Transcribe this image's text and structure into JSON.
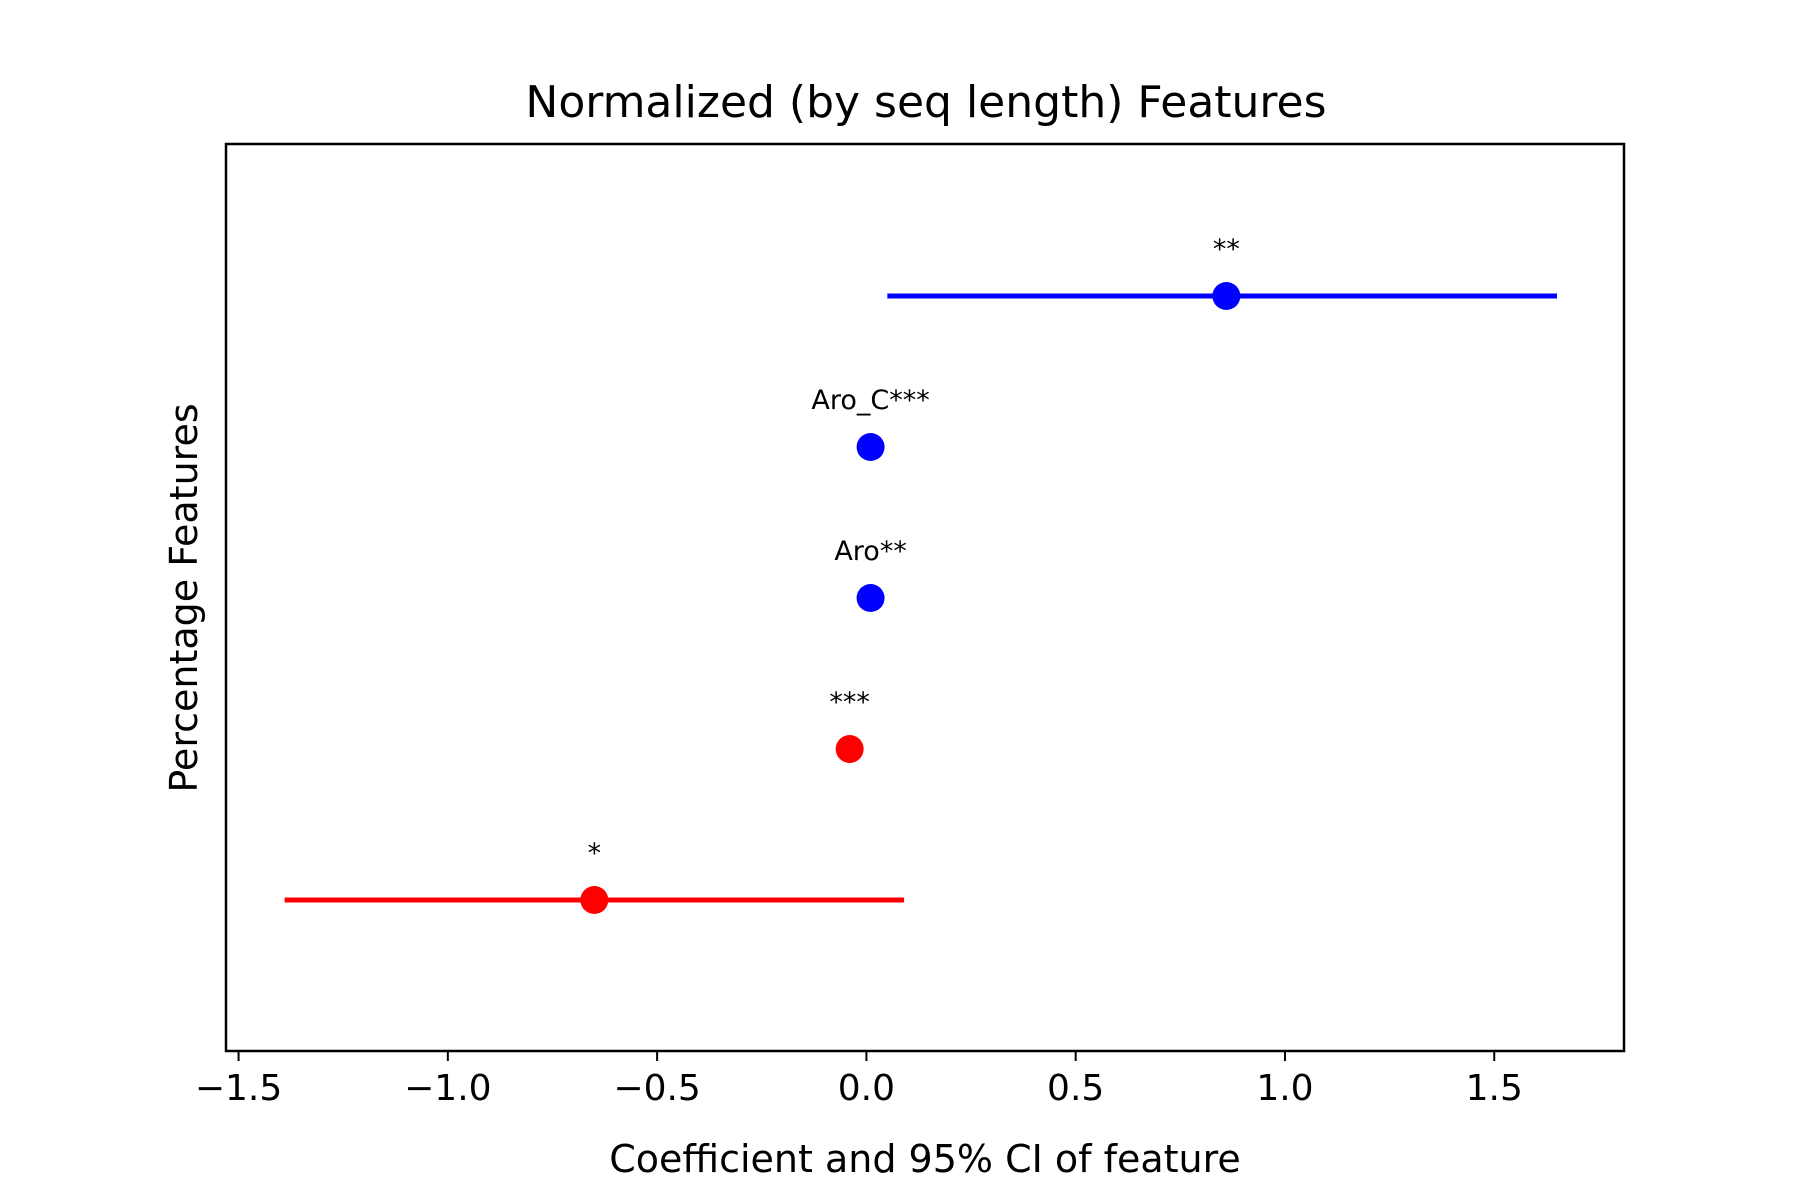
{
  "chart_data": {
    "type": "scatter",
    "title": "Normalized (by seq length) Features",
    "xlabel": "Coefficient and 95% CI of feature",
    "ylabel": "Percentage Features",
    "xlim": [
      -1.53,
      1.81
    ],
    "xticks": [
      -1.5,
      -1.0,
      -0.5,
      0.0,
      0.5,
      1.0,
      1.5
    ],
    "xtick_labels": [
      "−1.5",
      "−1.0",
      "−0.5",
      "0.0",
      "0.5",
      "1.0",
      "1.5"
    ],
    "grid": false,
    "legend": "none",
    "points": [
      {
        "annotation": "**",
        "coef": 0.86,
        "ci": [
          0.05,
          1.65
        ],
        "color": "#0000ff"
      },
      {
        "annotation": "Aro_C***",
        "coef": 0.01,
        "ci": [
          0.01,
          0.01
        ],
        "color": "#0000ff"
      },
      {
        "annotation": "Aro**",
        "coef": 0.01,
        "ci": [
          0.01,
          0.01
        ],
        "color": "#0000ff"
      },
      {
        "annotation": "***",
        "coef": -0.04,
        "ci": [
          -0.04,
          -0.04
        ],
        "color": "#ff0000"
      },
      {
        "annotation": "*",
        "coef": -0.65,
        "ci": [
          -1.39,
          0.09
        ],
        "color": "#ff0000"
      }
    ]
  }
}
